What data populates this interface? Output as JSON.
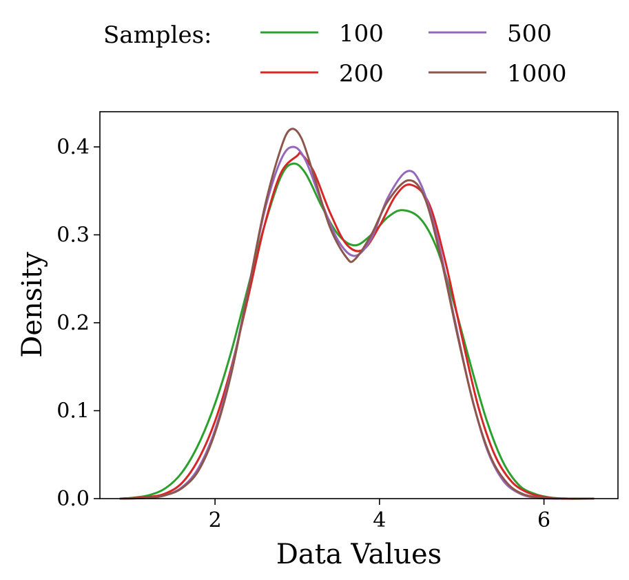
{
  "chart_data": {
    "type": "line",
    "title": "",
    "xlabel": "Data Values",
    "ylabel": "Density",
    "xlim": [
      0.6,
      6.9
    ],
    "ylim": [
      0.0,
      0.44
    ],
    "xticks": [
      2,
      4,
      6
    ],
    "yticks": [
      0.0,
      0.1,
      0.2,
      0.3,
      0.4
    ],
    "xtick_labels": [
      "2",
      "4",
      "6"
    ],
    "ytick_labels": [
      "0.0",
      "0.1",
      "0.2",
      "0.3",
      "0.4"
    ],
    "grid": false,
    "legend": {
      "title": "Samples:",
      "position": "top",
      "columns": 2
    },
    "series": [
      {
        "name": "100",
        "color": "#2ca02c",
        "x": [
          0.85,
          1.0,
          1.2,
          1.4,
          1.6,
          1.8,
          2.0,
          2.2,
          2.4,
          2.6,
          2.8,
          2.95,
          3.1,
          3.3,
          3.5,
          3.7,
          3.9,
          4.1,
          4.28,
          4.5,
          4.7,
          4.9,
          5.1,
          5.3,
          5.5,
          5.7,
          5.9,
          6.1,
          6.3,
          6.6
        ],
        "y": [
          0.0,
          0.001,
          0.004,
          0.012,
          0.03,
          0.062,
          0.108,
          0.168,
          0.24,
          0.31,
          0.366,
          0.381,
          0.37,
          0.332,
          0.3,
          0.288,
          0.3,
          0.32,
          0.328,
          0.318,
          0.284,
          0.224,
          0.155,
          0.09,
          0.042,
          0.015,
          0.005,
          0.001,
          0.0,
          0.0
        ]
      },
      {
        "name": "200",
        "color": "#d62728",
        "x": [
          0.85,
          1.2,
          1.4,
          1.6,
          1.8,
          2.0,
          2.2,
          2.4,
          2.6,
          2.8,
          3.0,
          3.05,
          3.2,
          3.4,
          3.6,
          3.8,
          4.0,
          4.2,
          4.38,
          4.6,
          4.8,
          5.0,
          5.2,
          5.4,
          5.6,
          5.8,
          6.0,
          6.2,
          6.4,
          6.6
        ],
        "y": [
          0.0,
          0.002,
          0.006,
          0.018,
          0.045,
          0.088,
          0.15,
          0.228,
          0.31,
          0.37,
          0.39,
          0.392,
          0.372,
          0.325,
          0.289,
          0.283,
          0.31,
          0.345,
          0.357,
          0.336,
          0.27,
          0.185,
          0.105,
          0.05,
          0.02,
          0.007,
          0.002,
          0.0,
          0.0,
          0.0
        ]
      },
      {
        "name": "500",
        "color": "#9467bd",
        "x": [
          0.85,
          1.2,
          1.4,
          1.6,
          1.8,
          2.0,
          2.2,
          2.4,
          2.6,
          2.8,
          2.95,
          3.1,
          3.3,
          3.5,
          3.7,
          3.9,
          4.1,
          4.33,
          4.5,
          4.7,
          4.9,
          5.1,
          5.3,
          5.5,
          5.7,
          5.9,
          6.1,
          6.3,
          6.6
        ],
        "y": [
          0.0,
          0.001,
          0.004,
          0.013,
          0.035,
          0.078,
          0.146,
          0.236,
          0.326,
          0.385,
          0.4,
          0.385,
          0.336,
          0.293,
          0.276,
          0.296,
          0.342,
          0.372,
          0.358,
          0.298,
          0.21,
          0.124,
          0.058,
          0.021,
          0.006,
          0.001,
          0.0,
          0.0,
          0.0
        ]
      },
      {
        "name": "1000",
        "color": "#8c564b",
        "x": [
          0.85,
          1.2,
          1.4,
          1.6,
          1.8,
          2.0,
          2.2,
          2.4,
          2.6,
          2.8,
          2.92,
          3.05,
          3.2,
          3.4,
          3.6,
          3.7,
          3.9,
          4.1,
          4.35,
          4.55,
          4.75,
          4.95,
          5.15,
          5.35,
          5.55,
          5.75,
          6.0,
          6.3,
          6.6
        ],
        "y": [
          0.0,
          0.001,
          0.004,
          0.012,
          0.032,
          0.075,
          0.143,
          0.235,
          0.33,
          0.398,
          0.42,
          0.41,
          0.368,
          0.308,
          0.274,
          0.272,
          0.3,
          0.338,
          0.362,
          0.342,
          0.272,
          0.185,
          0.105,
          0.048,
          0.018,
          0.005,
          0.001,
          0.0,
          0.0
        ]
      }
    ]
  }
}
